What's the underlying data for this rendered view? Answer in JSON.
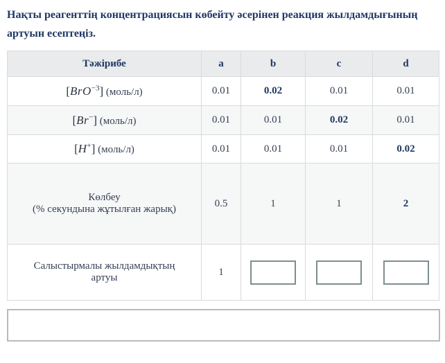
{
  "question": {
    "title": "Нақты реагенттің концентрациясын көбейту әсерінен реакция жылдамдығының артуын есептеңіз."
  },
  "table": {
    "header": {
      "experiment": "Тәжірибе",
      "a": "a",
      "b": "b",
      "c": "c",
      "d": "d"
    },
    "rows": [
      {
        "formula": {
          "open": "[",
          "symbol": "BrO",
          "sup": "−3",
          "close": "]",
          "unit": "(моль/л)"
        },
        "values": {
          "a": "0.01",
          "b": "0.02",
          "c": "0.01",
          "d": "0.01"
        }
      },
      {
        "formula": {
          "open": "[",
          "symbol": "Br",
          "sup": "−",
          "close": "]",
          "unit": "(моль/л)"
        },
        "values": {
          "a": "0.01",
          "b": "0.01",
          "c": "0.02",
          "d": "0.01"
        }
      },
      {
        "formula": {
          "open": "[",
          "symbol": "H",
          "sup": "+",
          "close": "]",
          "unit": "(моль/л)"
        },
        "values": {
          "a": "0.01",
          "b": "0.01",
          "c": "0.01",
          "d": "0.02"
        }
      },
      {
        "label_line1": "Көлбеу",
        "label_line2": "(% секундына жұтылған жарық)",
        "values": {
          "a": "0.5",
          "b": "1",
          "c": "1",
          "d": "2"
        }
      },
      {
        "label": "Салыстырмалы жылдамдықтың артуы",
        "values": {
          "a": "1"
        },
        "inputs": {
          "b": "",
          "c": "",
          "d": ""
        }
      }
    ]
  },
  "answer_box": {
    "value": ""
  },
  "colors": {
    "title_navy": "#1f3864",
    "header_bg": "#e9ebec",
    "stripe_bg": "#f6f7f7",
    "table_border": "#d9dadc",
    "small_input_border": "#7f8d8e",
    "answer_input_border": "#b6bcbd"
  }
}
